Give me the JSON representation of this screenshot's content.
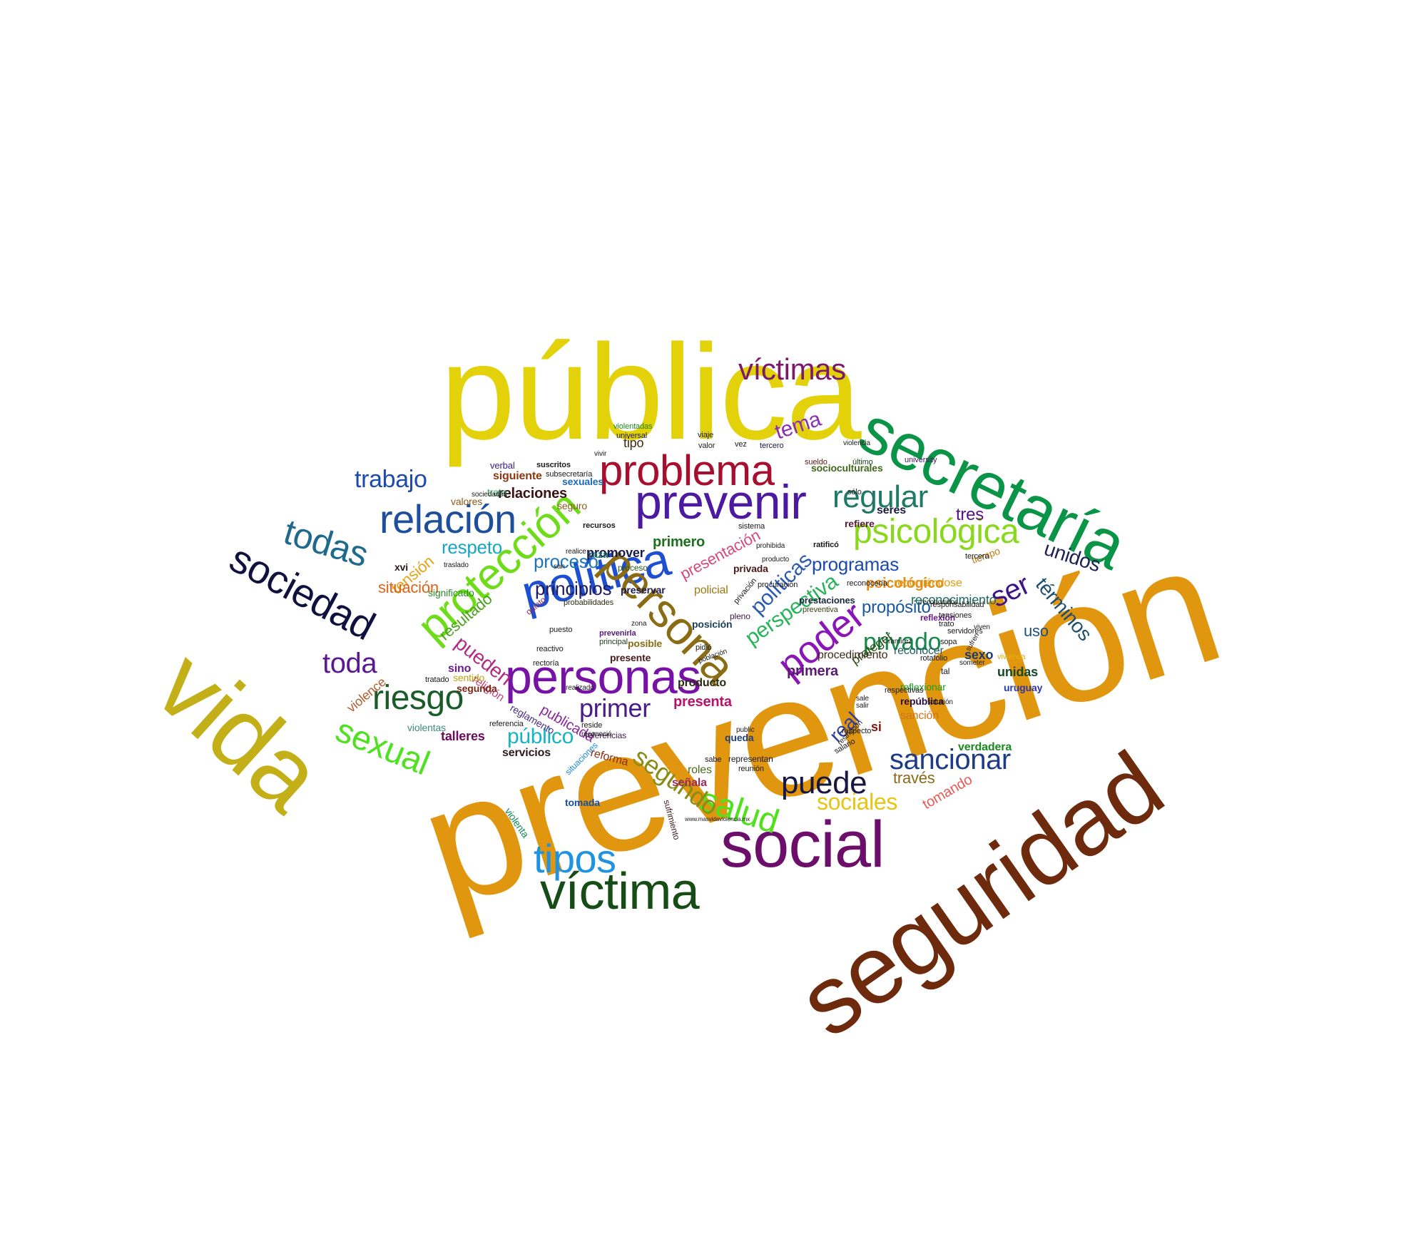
{
  "title": "",
  "colors": {
    "background": "#ffffff"
  },
  "words": [
    {
      "text": "prevención",
      "color": "#e1960f"
    },
    {
      "text": "pública",
      "color": "#e3d20a"
    },
    {
      "text": "seguridad",
      "color": "#6e2a0c"
    },
    {
      "text": "secretaría",
      "color": "#0a9447"
    },
    {
      "text": "vida",
      "color": "#c3b018"
    },
    {
      "text": "social",
      "color": "#6b0f6b"
    },
    {
      "text": "víctima",
      "color": "#164d16"
    },
    {
      "text": "personas",
      "color": "#7612a6"
    },
    {
      "text": "política",
      "color": "#1f4fd1"
    },
    {
      "text": "prevenir",
      "color": "#4b1aa0"
    },
    {
      "text": "protección",
      "color": "#6fdc1a"
    },
    {
      "text": "problema",
      "color": "#a80f2f"
    },
    {
      "text": "persona",
      "color": "#8a6c14"
    },
    {
      "text": "psicológica",
      "color": "#8ad81c"
    },
    {
      "text": "víctimas",
      "color": "#7b1a6b"
    },
    {
      "text": "sociedad",
      "color": "#10113e"
    },
    {
      "text": "relación",
      "color": "#1d4f9c"
    },
    {
      "text": "todas",
      "color": "#1f6a8c"
    },
    {
      "text": "riesgo",
      "color": "#195c2a"
    },
    {
      "text": "sexual",
      "color": "#4ee11f"
    },
    {
      "text": "tipos",
      "color": "#1f93e2"
    },
    {
      "text": "salud",
      "color": "#4fe21b"
    },
    {
      "text": "puede",
      "color": "#171741"
    },
    {
      "text": "poder",
      "color": "#8b16b8"
    },
    {
      "text": "regular",
      "color": "#1e7a66"
    },
    {
      "text": "sancionar",
      "color": "#1d3b87"
    },
    {
      "text": "trabajo",
      "color": "#1c4bb0"
    },
    {
      "text": "toda",
      "color": "#5a1891"
    },
    {
      "text": "segundo",
      "color": "#8a8c18"
    },
    {
      "text": "ser",
      "color": "#3d1487"
    },
    {
      "text": "primer",
      "color": "#4a1a86"
    },
    {
      "text": "público",
      "color": "#16b5c2"
    },
    {
      "text": "tema",
      "color": "#8f2eb0"
    },
    {
      "text": "unidos",
      "color": "#1d1f57"
    },
    {
      "text": "términos",
      "color": "#1e4e6e"
    },
    {
      "text": "respeto",
      "color": "#18a7c0"
    },
    {
      "text": "sociales",
      "color": "#e8c415"
    },
    {
      "text": "políticas",
      "color": "#2d5ab1"
    },
    {
      "text": "privado",
      "color": "#14894a"
    },
    {
      "text": "perspectiva",
      "color": "#29b35a"
    },
    {
      "text": "programas",
      "color": "#1a49b0"
    },
    {
      "text": "principios",
      "color": "#201c5e"
    },
    {
      "text": "proceso",
      "color": "#1f75b5"
    },
    {
      "text": "tres",
      "color": "#5a1282"
    },
    {
      "text": "real",
      "color": "#2f3d9c"
    },
    {
      "text": "uso",
      "color": "#1d4f7e"
    },
    {
      "text": "resultado",
      "color": "#4aa21c"
    },
    {
      "text": "tensión",
      "color": "#e4a417"
    },
    {
      "text": "situación",
      "color": "#e0621a"
    },
    {
      "text": "pueden",
      "color": "#b22a82"
    },
    {
      "text": "relaciones",
      "color": "#3a1212"
    },
    {
      "text": "psicológico",
      "color": "#e58a12"
    },
    {
      "text": "propósito",
      "color": "#1958a3"
    },
    {
      "text": "reconocimiento",
      "color": "#1d6a5b"
    },
    {
      "text": "promover",
      "color": "#1a1a4d"
    },
    {
      "text": "presentación",
      "color": "#d44a7d"
    },
    {
      "text": "publicada",
      "color": "#8a2b9c"
    },
    {
      "text": "sexuales",
      "color": "#1a6ab8"
    },
    {
      "text": "primero",
      "color": "#1c6f1f"
    },
    {
      "text": "presenta",
      "color": "#b7136a"
    },
    {
      "text": "siguiente",
      "color": "#8a3a12"
    },
    {
      "text": "través",
      "color": "#8a6a1a"
    },
    {
      "text": "tomando",
      "color": "#e55a58"
    },
    {
      "text": "sexo",
      "color": "#1c3c70"
    },
    {
      "text": "unidas",
      "color": "#14482a"
    },
    {
      "text": "verdadera",
      "color": "#1a8a1f"
    },
    {
      "text": "uruguay",
      "color": "#2a38a6"
    },
    {
      "text": "violence",
      "color": "#b25c2b"
    },
    {
      "text": "religión",
      "color": "#c2417c"
    },
    {
      "text": "sino",
      "color": "#6b1a8a"
    },
    {
      "text": "segunda",
      "color": "#7a2815"
    },
    {
      "text": "sentido",
      "color": "#c0a015"
    },
    {
      "text": "violentas",
      "color": "#3a8c7a"
    },
    {
      "text": "talleres",
      "color": "#6a0b5b"
    },
    {
      "text": "servicios",
      "color": "#2c1a1a"
    },
    {
      "text": "reforma",
      "color": "#8a2e12"
    },
    {
      "text": "referencias",
      "color": "#3a1a4d"
    },
    {
      "text": "queda",
      "color": "#203e78"
    },
    {
      "text": "señala",
      "color": "#9c2a5a"
    },
    {
      "text": "roles",
      "color": "#4a6a1a"
    },
    {
      "text": "tomada",
      "color": "#1a4e9c"
    },
    {
      "text": "violenta",
      "color": "#0f8a57"
    },
    {
      "text": "situaciones",
      "color": "#1c8ad8"
    },
    {
      "text": "sufrimiento",
      "color": "#3a1a1a"
    },
    {
      "text": "reglamento",
      "color": "#4a2e85"
    },
    {
      "text": "república",
      "color": "#2a0f3e"
    },
    {
      "text": "sanción",
      "color": "#d4701a"
    },
    {
      "text": "reflexionar",
      "color": "#1a9c1f"
    },
    {
      "text": "primera",
      "color": "#5a1a6e"
    },
    {
      "text": "proteger",
      "color": "#2e4e1a"
    },
    {
      "text": "reconocer",
      "color": "#1e5a5a"
    },
    {
      "text": "procedimiento",
      "color": "#3e2a1a"
    },
    {
      "text": "producto",
      "color": "#2a2a12"
    },
    {
      "text": "presente",
      "color": "#4a1a1a"
    },
    {
      "text": "posible",
      "color": "#8a6c14"
    },
    {
      "text": "principal",
      "color": "#1c3a1a"
    },
    {
      "text": "prevenirla",
      "color": "#5a1a7a"
    },
    {
      "text": "probabilidades",
      "color": "#2e2e12"
    },
    {
      "text": "preservar",
      "color": "#1a1a4e"
    },
    {
      "text": "posición",
      "color": "#1a3e5a"
    },
    {
      "text": "policial",
      "color": "#9c7a14"
    },
    {
      "text": "pleno",
      "color": "#3e1a3e"
    },
    {
      "text": "privada",
      "color": "#4a1a1a"
    },
    {
      "text": "raza",
      "color": "#1c6a6a"
    },
    {
      "text": "proceso",
      "color": "#2a5a1a"
    },
    {
      "text": "significado",
      "color": "#2e8a2e"
    },
    {
      "text": "xvi",
      "color": "#2a1a1a"
    },
    {
      "text": "valores",
      "color": "#8a5a1a"
    },
    {
      "text": "seguro",
      "color": "#8a5a1a"
    },
    {
      "text": "trata",
      "color": "#2e9c5a"
    },
    {
      "text": "verbal",
      "color": "#3a1a8a"
    },
    {
      "text": "tipo",
      "color": "#3e2a12"
    },
    {
      "text": "refiere",
      "color": "#5a1a3a"
    },
    {
      "text": "recorriéndose",
      "color": "#e39a12"
    },
    {
      "text": "seres",
      "color": "#1a1a3e"
    },
    {
      "text": "socioculturales",
      "color": "#3e6a1a"
    },
    {
      "text": "si",
      "color": "#7a1a12"
    },
    {
      "text": "tiempo",
      "color": "#c27a14"
    },
    {
      "text": "reflexión",
      "color": "#6a1a8a"
    },
    {
      "text": "ratificó",
      "color": "#1a1a1a"
    },
    {
      "text": "prestaciones",
      "color": "#1a2a3e"
    },
    {
      "text": "preventiva",
      "color": "#3e3e1a"
    },
    {
      "text": "sólo",
      "color": "#1a1a1a"
    },
    {
      "text": "vivienda",
      "color": "#e0b012"
    },
    {
      "text": "tercera",
      "color": "#1a1a1a"
    },
    {
      "text": "university",
      "color": "#3e1a5a"
    },
    {
      "text": "último",
      "color": "#1a3e1a"
    },
    {
      "text": "sueldo",
      "color": "#5a1a12"
    },
    {
      "text": "tercero",
      "color": "#1a1a3e"
    },
    {
      "text": "suscritos",
      "color": "#1a1a1a"
    },
    {
      "text": "subsecretaría",
      "color": "#1a1a1a"
    },
    {
      "text": "recursos",
      "color": "#1a1a1a"
    },
    {
      "text": "sociedades",
      "color": "#1a1a1a"
    },
    {
      "text": "traslado",
      "color": "#1a1a1a"
    },
    {
      "text": "violentadas",
      "color": "#1a8a1a"
    },
    {
      "text": "universal",
      "color": "#1a1a5a"
    },
    {
      "text": "valor",
      "color": "#1a1a1a"
    },
    {
      "text": "viaje",
      "color": "#1a1a1a"
    },
    {
      "text": "reside",
      "color": "#1a1a1a"
    },
    {
      "text": "representan",
      "color": "#1a1a1a"
    },
    {
      "text": "reunión",
      "color": "#1a1a1a"
    },
    {
      "text": "respecto",
      "color": "#1a1a1a"
    },
    {
      "text": "salir",
      "color": "#1a1a1a"
    },
    {
      "text": "sale",
      "color": "#1a1a1a"
    },
    {
      "text": "reconocidos",
      "color": "#1a1a1a"
    },
    {
      "text": "reconocería",
      "color": "#1a1a1a"
    },
    {
      "text": "solución",
      "color": "#1a1a1a"
    },
    {
      "text": "someter",
      "color": "#1a1a1a"
    },
    {
      "text": "sufren",
      "color": "#1a1a1a"
    },
    {
      "text": "realizado",
      "color": "#1a1a1a"
    },
    {
      "text": "quinto",
      "color": "#8a2e5a"
    },
    {
      "text": "puesto",
      "color": "#1a1a1a"
    },
    {
      "text": "referencia",
      "color": "#1a1a1a"
    },
    {
      "text": "tratado",
      "color": "#1a1a1a"
    },
    {
      "text": "respectivas",
      "color": "#1a1a1a"
    },
    {
      "text": "privación",
      "color": "#1a1a1a"
    },
    {
      "text": "procuración",
      "color": "#1a1a1a"
    },
    {
      "text": "responsabilidad",
      "color": "#1a1a1a"
    },
    {
      "text": "servidores",
      "color": "#1a1a1a"
    },
    {
      "text": "tensiones",
      "color": "#1a1a1a"
    },
    {
      "text": "trato",
      "color": "#1a1a1a"
    },
    {
      "text": "tal",
      "color": "#1a1a1a"
    },
    {
      "text": "rotafolio",
      "color": "#1a1a1a"
    },
    {
      "text": "sopa",
      "color": "#1a1a1a"
    },
    {
      "text": "ramírez",
      "color": "#1a1a1a"
    },
    {
      "text": "pidió",
      "color": "#1a1a1a"
    },
    {
      "text": "población",
      "color": "#1a1a1a"
    },
    {
      "text": "prohibida",
      "color": "#1a1a1a"
    },
    {
      "text": "producto",
      "color": "#1a1a1a"
    },
    {
      "text": "vez",
      "color": "#1a1a1a"
    },
    {
      "text": "sistema",
      "color": "#1a1a1a"
    },
    {
      "text": "sabe",
      "color": "#1a1a1a"
    },
    {
      "text": "public",
      "color": "#1a1a1a"
    },
    {
      "text": "salario",
      "color": "#1a1a1a"
    },
    {
      "text": "restricción",
      "color": "#1a1a1a"
    },
    {
      "text": "reactivo",
      "color": "#1a1a1a"
    },
    {
      "text": "rectoría",
      "color": "#1a1a1a"
    },
    {
      "text": "reconoció",
      "color": "#1a1a1a"
    },
    {
      "text": "realice",
      "color": "#1a1a1a"
    },
    {
      "text": "san",
      "color": "#1a1a1a"
    },
    {
      "text": "violencia",
      "color": "#1a1a1a"
    },
    {
      "text": "viven",
      "color": "#1a1a1a"
    },
    {
      "text": "vivir",
      "color": "#1a1a1a"
    },
    {
      "text": "zona",
      "color": "#1a1a1a"
    },
    {
      "text": "www.masvidaviolencia.mx",
      "color": "#1a1a1a"
    }
  ]
}
